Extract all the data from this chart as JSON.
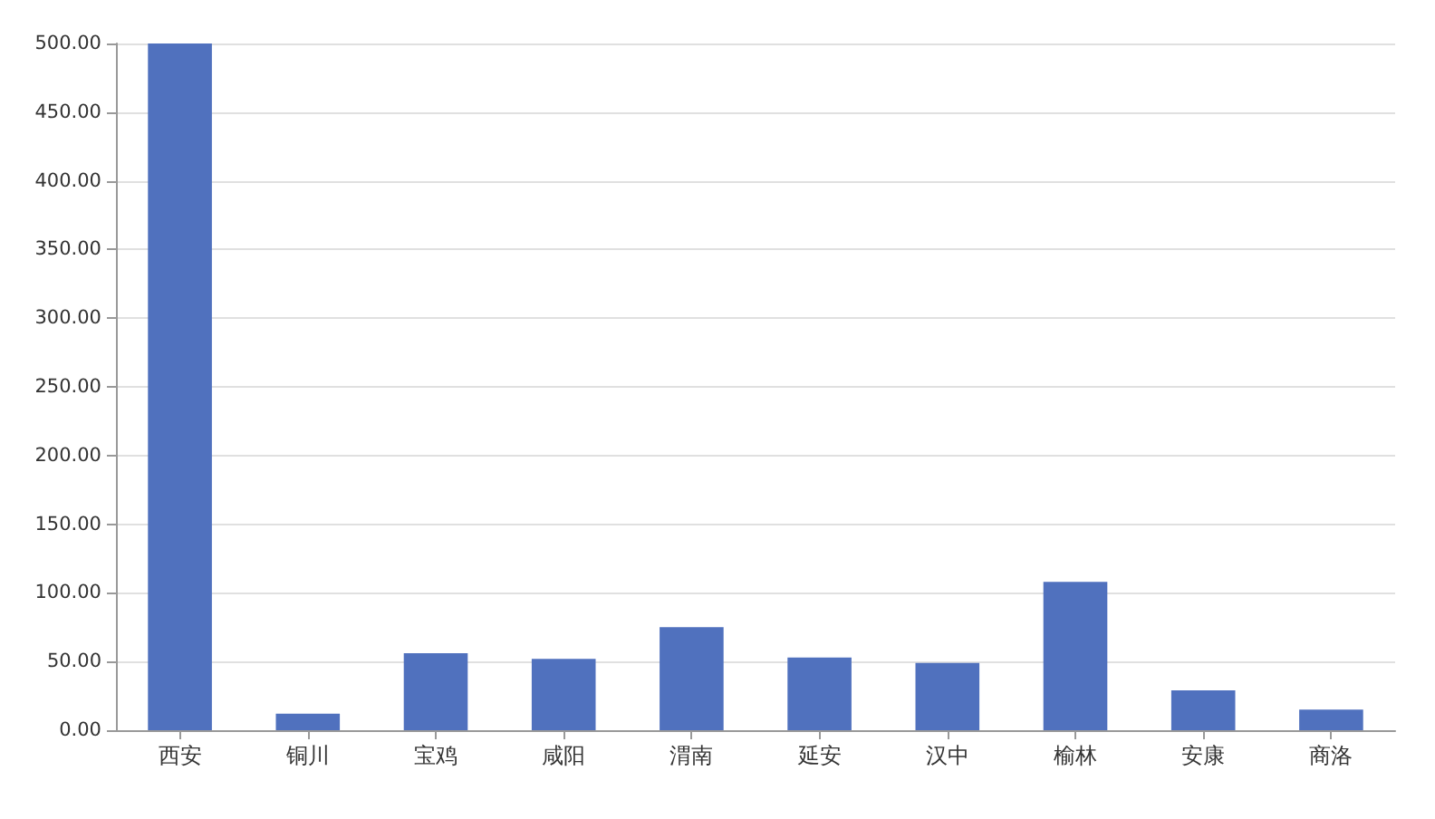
{
  "chart_data": {
    "type": "bar",
    "categories": [
      "西安",
      "铜川",
      "宝鸡",
      "咸阳",
      "渭南",
      "延安",
      "汉中",
      "榆林",
      "安康",
      "商洛"
    ],
    "values": [
      500,
      12,
      56,
      52,
      75,
      53,
      49,
      108,
      29,
      15
    ],
    "color": "#5071be",
    "ylim": [
      0,
      500
    ],
    "yticks": [
      {
        "value": 0,
        "label": "0.00"
      },
      {
        "value": 50,
        "label": "50.00"
      },
      {
        "value": 100,
        "label": "100.00"
      },
      {
        "value": 150,
        "label": "150.00"
      },
      {
        "value": 200,
        "label": "200.00"
      },
      {
        "value": 250,
        "label": "250.00"
      },
      {
        "value": 300,
        "label": "300.00"
      },
      {
        "value": 350,
        "label": "350.00"
      },
      {
        "value": 400,
        "label": "400.00"
      },
      {
        "value": 450,
        "label": "450.00"
      },
      {
        "value": 500,
        "label": "500.00"
      }
    ],
    "grid": "y"
  }
}
